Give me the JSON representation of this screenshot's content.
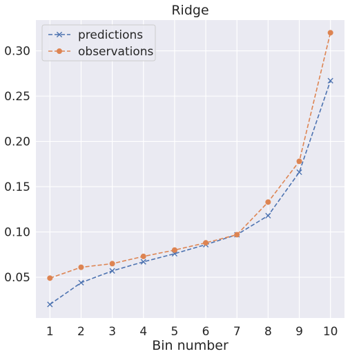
{
  "chart_data": {
    "type": "line",
    "title": "Ridge",
    "xlabel": "Bin number",
    "ylabel": "",
    "x": [
      1,
      2,
      3,
      4,
      5,
      6,
      7,
      8,
      9,
      10
    ],
    "x_tick_labels": [
      "1",
      "2",
      "3",
      "4",
      "5",
      "6",
      "7",
      "8",
      "9",
      "10"
    ],
    "y_ticks": [
      0.05,
      0.1,
      0.15,
      0.2,
      0.25,
      0.3
    ],
    "y_tick_labels": [
      "0.05",
      "0.10",
      "0.15",
      "0.20",
      "0.25",
      "0.30"
    ],
    "xlim": [
      0.55,
      10.45
    ],
    "ylim": [
      0.005,
      0.334
    ],
    "grid": true,
    "legend_position": "top-left",
    "series": [
      {
        "name": "predictions",
        "color": "#4c72b0",
        "marker": "x",
        "linestyle": "dashed",
        "values": [
          0.02,
          0.044,
          0.057,
          0.067,
          0.076,
          0.086,
          0.097,
          0.118,
          0.166,
          0.267
        ]
      },
      {
        "name": "observations",
        "color": "#dd8452",
        "marker": "circle",
        "linestyle": "dashed",
        "values": [
          0.049,
          0.061,
          0.065,
          0.073,
          0.08,
          0.088,
          0.097,
          0.133,
          0.178,
          0.32
        ]
      }
    ],
    "colors": {
      "plot_background": "#eaeaf2",
      "grid": "#ffffff",
      "text": "#262626"
    }
  }
}
